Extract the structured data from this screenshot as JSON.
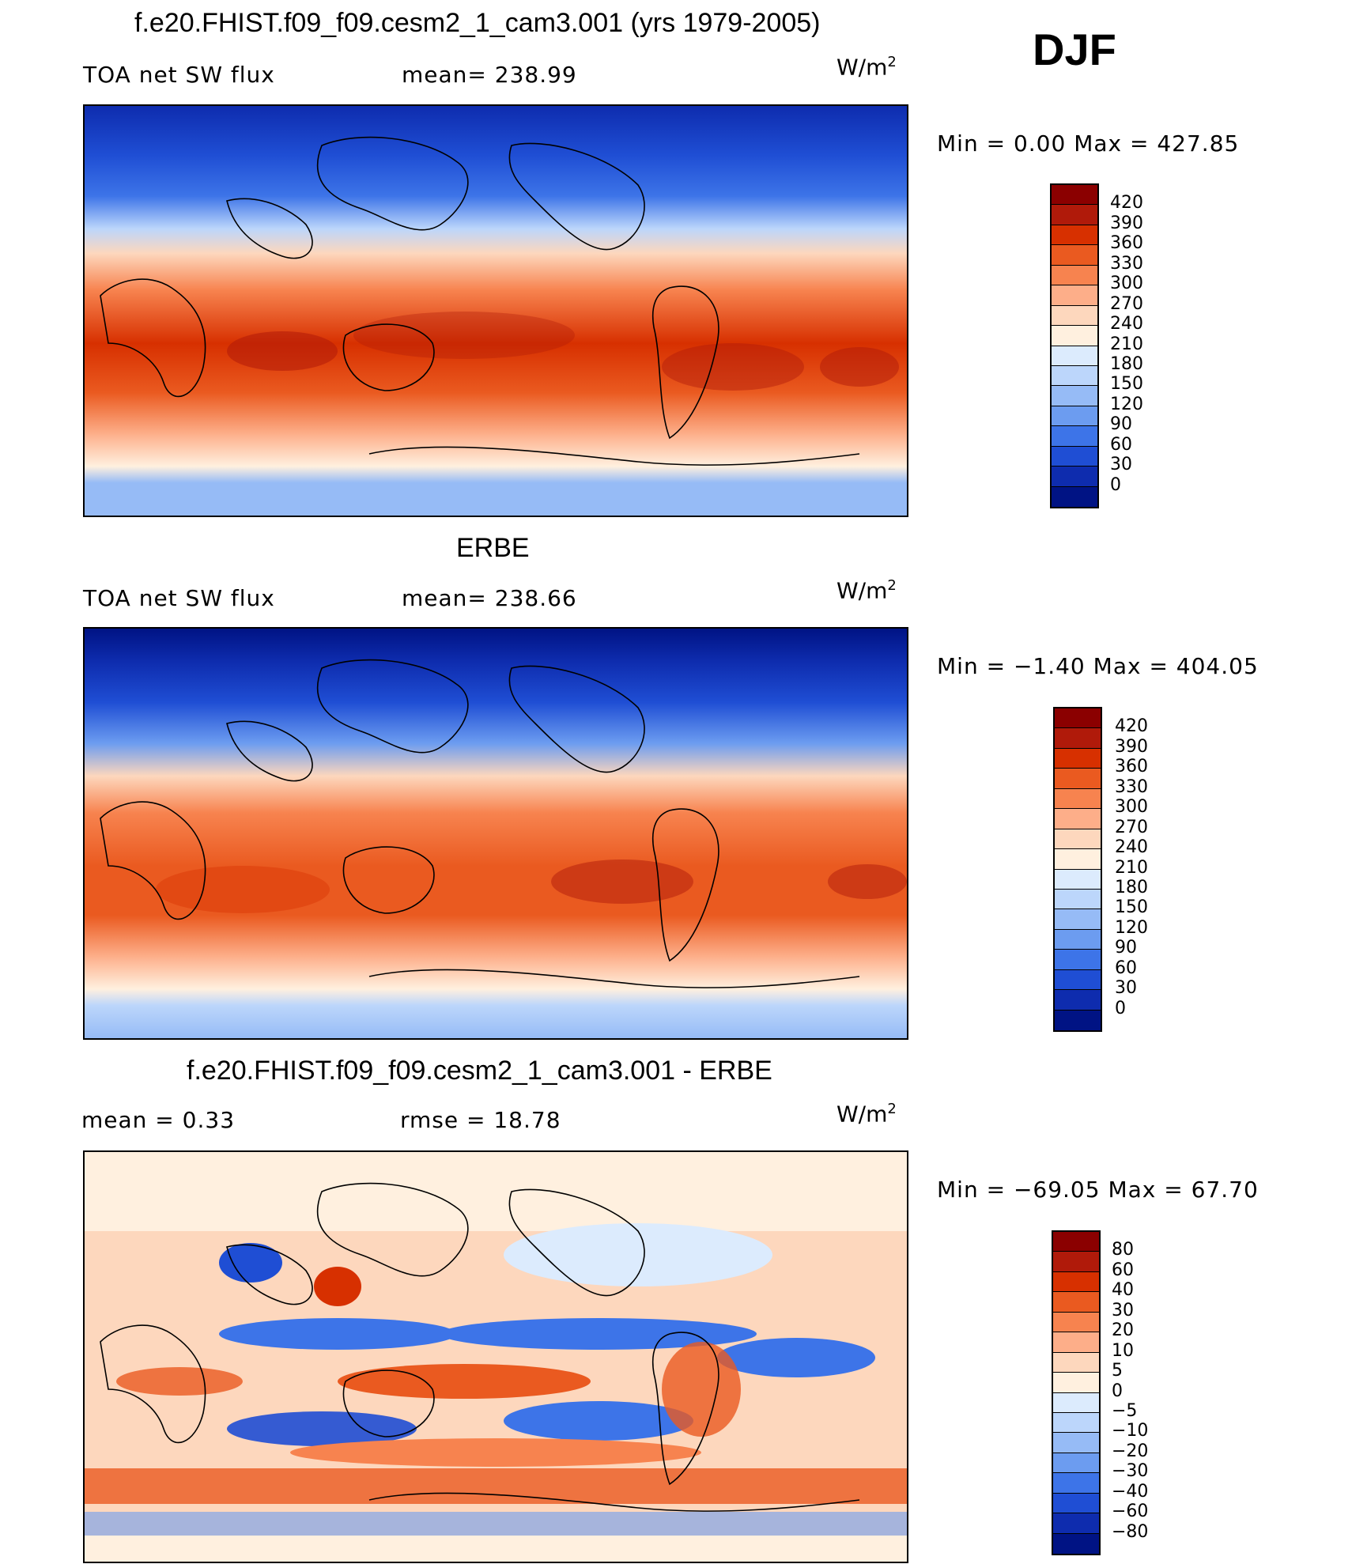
{
  "figure": {
    "season": "DJF"
  },
  "panels": [
    {
      "id": "model",
      "title": "f.e20.FHIST.f09_f09.cesm2_1_cam3.001 (yrs 1979-2005)",
      "left_label": "TOA net SW flux",
      "center_label": "mean= 238.99",
      "units_base": "W/m",
      "units_exp": "2",
      "min_text": "Min =    0.00",
      "max_text": "Max = 427.85",
      "colorbar": {
        "colors": [
          "#8b0000",
          "#b01a0a",
          "#d73000",
          "#ea5a20",
          "#f7834f",
          "#fdae89",
          "#fdd7bd",
          "#fff0df",
          "#dcebfd",
          "#bcd6fb",
          "#96bbf6",
          "#6c9cf0",
          "#3d74e8",
          "#1f4ed4",
          "#0e2cae",
          "#001384"
        ],
        "labels": [
          "420",
          "390",
          "360",
          "330",
          "300",
          "270",
          "240",
          "210",
          "180",
          "150",
          "120",
          "90",
          "60",
          "30",
          "0"
        ]
      }
    },
    {
      "id": "obs",
      "title": "ERBE",
      "left_label": "TOA net SW flux",
      "center_label": "mean= 238.66",
      "units_base": "W/m",
      "units_exp": "2",
      "min_text": "Min =  −1.40",
      "max_text": "Max = 404.05",
      "colorbar": {
        "colors": [
          "#8b0000",
          "#b01a0a",
          "#d73000",
          "#ea5a20",
          "#f7834f",
          "#fdae89",
          "#fdd7bd",
          "#fff0df",
          "#dcebfd",
          "#bcd6fb",
          "#96bbf6",
          "#6c9cf0",
          "#3d74e8",
          "#1f4ed4",
          "#0e2cae",
          "#001384"
        ],
        "labels": [
          "420",
          "390",
          "360",
          "330",
          "300",
          "270",
          "240",
          "210",
          "180",
          "150",
          "120",
          "90",
          "60",
          "30",
          "0"
        ]
      }
    },
    {
      "id": "diff",
      "title": "f.e20.FHIST.f09_f09.cesm2_1_cam3.001 - ERBE",
      "left_label": "mean =     0.33",
      "center_label": "rmse =    18.78",
      "units_base": "W/m",
      "units_exp": "2",
      "min_text": "Min = −69.05",
      "max_text": "Max =   67.70",
      "colorbar": {
        "colors": [
          "#8b0000",
          "#b01a0a",
          "#d73000",
          "#ea5a20",
          "#f7834f",
          "#fdae89",
          "#fdd7bd",
          "#fff0df",
          "#dcebfd",
          "#bcd6fb",
          "#96bbf6",
          "#6c9cf0",
          "#3d74e8",
          "#1f4ed4",
          "#0e2cae",
          "#001384"
        ],
        "labels": [
          "80",
          "60",
          "40",
          "30",
          "20",
          "10",
          "5",
          "0",
          "−5",
          "−10",
          "−20",
          "−30",
          "−40",
          "−60",
          "−80"
        ]
      }
    }
  ]
}
